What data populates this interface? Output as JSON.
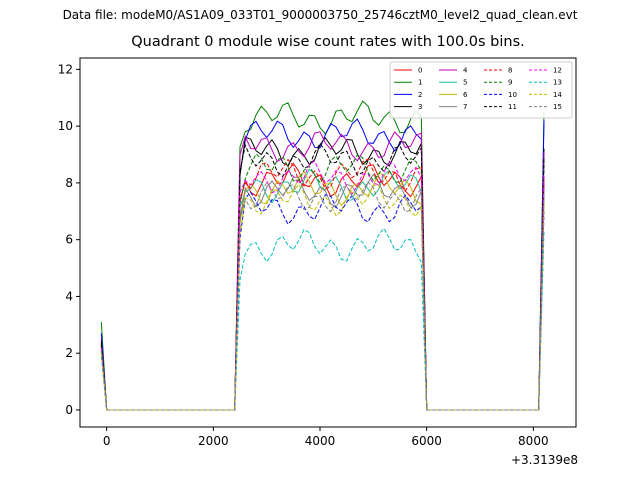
{
  "figure": {
    "suptitle": "Data file: modeM0/AS1A09_033T01_9000003750_25746cztM0_level2_quad_clean.evt"
  },
  "chart_data": {
    "type": "line",
    "title": "Quadrant 0 module wise count rates with 100.0s bins.",
    "xlabel": "",
    "ylabel": "",
    "x_offset_label": "+3.3139e8",
    "xlim": [
      -500,
      8800
    ],
    "ylim": [
      -0.6,
      12.4
    ],
    "x_ticks": [
      0,
      2000,
      4000,
      6000,
      8000
    ],
    "y_ticks": [
      0,
      2,
      4,
      6,
      8,
      10,
      12
    ],
    "grid": false,
    "legend_position": "top-right",
    "legend_columns": 4,
    "x": [
      -100,
      0,
      2400,
      2500,
      2600,
      5900,
      6000,
      6100,
      8100,
      8200
    ],
    "series": [
      {
        "name": "0",
        "color": "#ff0000",
        "dash": "solid",
        "level": 8.1,
        "start": 2.5,
        "end": 8.0
      },
      {
        "name": "1",
        "color": "#008000",
        "dash": "solid",
        "level": 10.3,
        "start": 3.1,
        "end": 10.5
      },
      {
        "name": "2",
        "color": "#0000ff",
        "dash": "solid",
        "level": 9.7,
        "start": 2.7,
        "end": 10.2
      },
      {
        "name": "3",
        "color": "#000000",
        "dash": "solid",
        "level": 9.1,
        "start": 2.4,
        "end": 9.2
      },
      {
        "name": "4",
        "color": "#bf00bf",
        "dash": "solid",
        "level": 9.3,
        "start": 2.3,
        "end": 9.1
      },
      {
        "name": "5",
        "color": "#1fbf9f",
        "dash": "solid",
        "level": 7.9,
        "start": 2.2,
        "end": 7.7
      },
      {
        "name": "6",
        "color": "#c8b400",
        "dash": "solid",
        "level": 7.8,
        "start": 2.1,
        "end": 7.5
      },
      {
        "name": "7",
        "color": "#808080",
        "dash": "solid",
        "level": 7.7,
        "start": 2.2,
        "end": 7.6
      },
      {
        "name": "8",
        "color": "#ff0000",
        "dash": "dashed",
        "level": 8.3,
        "start": 2.3,
        "end": 8.2
      },
      {
        "name": "9",
        "color": "#008000",
        "dash": "dashed",
        "level": 8.5,
        "start": 2.2,
        "end": 8.6
      },
      {
        "name": "10",
        "color": "#0000ff",
        "dash": "dashed",
        "level": 7.1,
        "start": 2.1,
        "end": 7.0
      },
      {
        "name": "11",
        "color": "#000000",
        "dash": "dashed",
        "level": 8.8,
        "start": 2.3,
        "end": 8.9
      },
      {
        "name": "12",
        "color": "#ff00ff",
        "dash": "dashed",
        "level": 8.2,
        "start": 2.2,
        "end": 8.3
      },
      {
        "name": "13",
        "color": "#00bfbf",
        "dash": "dashed",
        "level": 5.8,
        "start": 1.9,
        "end": 6.3
      },
      {
        "name": "14",
        "color": "#bfbf00",
        "dash": "dashed",
        "level": 7.4,
        "start": 2.0,
        "end": 7.2
      },
      {
        "name": "15",
        "color": "#808080",
        "dash": "dashed",
        "level": 7.5,
        "start": 2.1,
        "end": 7.6
      }
    ]
  }
}
